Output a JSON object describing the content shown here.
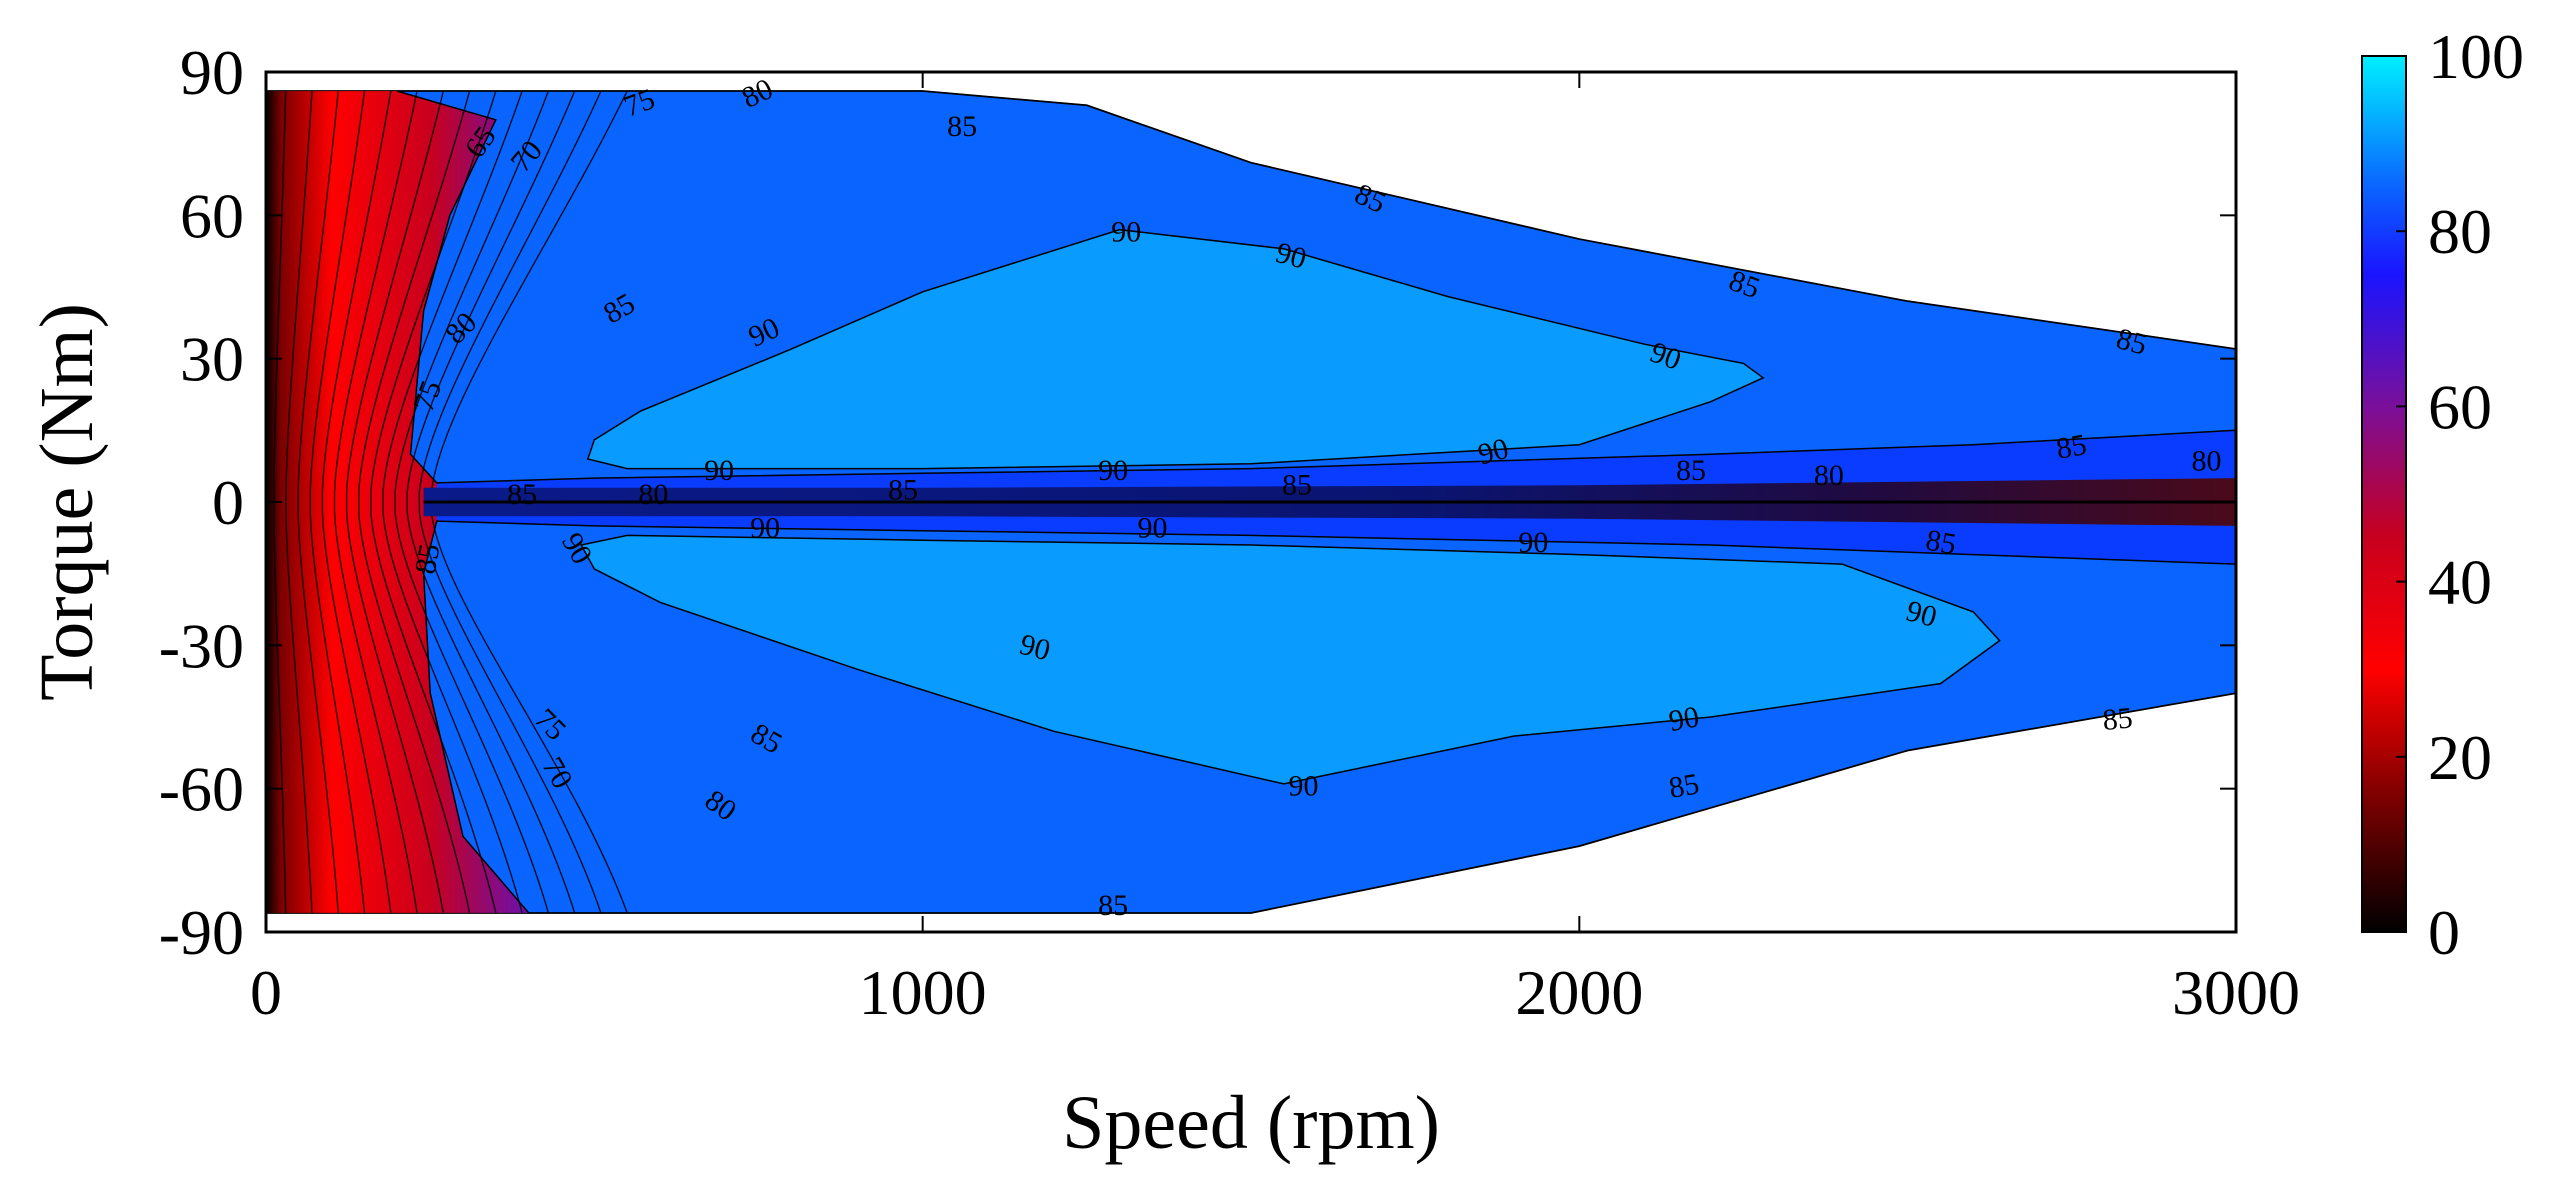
{
  "chart_data": {
    "type": "heatmap",
    "subtype": "filled-contour",
    "title": "",
    "xlabel": "Speed (rpm)",
    "ylabel": "Torque (Nm)",
    "xlim": [
      0,
      3000
    ],
    "ylim": [
      -90,
      90
    ],
    "xticks": [
      "0",
      "1000",
      "2000",
      "3000"
    ],
    "yticks": [
      "90",
      "60",
      "30",
      "0",
      "-30",
      "-60",
      "-90"
    ],
    "colorbar": {
      "range": [
        0,
        100
      ],
      "ticks": [
        "100",
        "80",
        "60",
        "40",
        "20",
        "0"
      ],
      "colormap": [
        {
          "v": 0,
          "c": "#000000"
        },
        {
          "v": 15,
          "c": "#7a0000"
        },
        {
          "v": 30,
          "c": "#ff0000"
        },
        {
          "v": 45,
          "c": "#c8001e"
        },
        {
          "v": 60,
          "c": "#7a0f9a"
        },
        {
          "v": 75,
          "c": "#1a14ff"
        },
        {
          "v": 85,
          "c": "#0a64ff"
        },
        {
          "v": 100,
          "c": "#00f0ff"
        }
      ]
    },
    "region_colors": {
      "level_90": "#0a9bff",
      "level_85": "#0a64ff",
      "level_80": "#0a3cff",
      "level_75": "#1f14f0"
    },
    "operating_envelope": {
      "upper": [
        [
          0,
          86
        ],
        [
          1000,
          86
        ],
        [
          1250,
          83
        ],
        [
          1500,
          71
        ],
        [
          2000,
          55
        ],
        [
          2500,
          42
        ],
        [
          3000,
          32
        ]
      ],
      "lower": [
        [
          0,
          -86
        ],
        [
          1500,
          -86
        ],
        [
          2000,
          -72
        ],
        [
          2500,
          -52
        ],
        [
          3000,
          -40
        ]
      ]
    },
    "contour_regions": {
      "level_85_upper": [
        [
          200,
          86
        ],
        [
          1000,
          86
        ],
        [
          1250,
          83
        ],
        [
          1500,
          71
        ],
        [
          2000,
          55
        ],
        [
          2500,
          42
        ],
        [
          3000,
          32
        ],
        [
          3000,
          15
        ],
        [
          2600,
          12
        ],
        [
          2200,
          10
        ],
        [
          1500,
          7
        ],
        [
          1000,
          6
        ],
        [
          500,
          5
        ],
        [
          260,
          4
        ],
        [
          220,
          10
        ],
        [
          240,
          40
        ],
        [
          280,
          60
        ],
        [
          350,
          80
        ]
      ],
      "level_85_lower": [
        [
          260,
          -4
        ],
        [
          500,
          -5
        ],
        [
          1000,
          -6
        ],
        [
          1500,
          -7
        ],
        [
          2200,
          -9
        ],
        [
          2600,
          -11
        ],
        [
          3000,
          -13
        ],
        [
          3000,
          -40
        ],
        [
          2500,
          -52
        ],
        [
          2000,
          -72
        ],
        [
          1500,
          -86
        ],
        [
          400,
          -86
        ],
        [
          300,
          -70
        ],
        [
          250,
          -40
        ],
        [
          240,
          -15
        ]
      ],
      "level_90_upper": [
        [
          500,
          13
        ],
        [
          570,
          19
        ],
        [
          800,
          32
        ],
        [
          1000,
          44
        ],
        [
          1300,
          57
        ],
        [
          1550,
          53
        ],
        [
          1800,
          43
        ],
        [
          2100,
          33
        ],
        [
          2250,
          29
        ],
        [
          2280,
          26
        ],
        [
          2200,
          21
        ],
        [
          2000,
          12
        ],
        [
          1500,
          8
        ],
        [
          1000,
          7
        ],
        [
          550,
          7
        ],
        [
          490,
          9
        ]
      ],
      "level_90_lower": [
        [
          550,
          -7
        ],
        [
          1000,
          -8
        ],
        [
          1500,
          -9
        ],
        [
          2000,
          -11
        ],
        [
          2400,
          -13
        ],
        [
          2600,
          -23
        ],
        [
          2640,
          -29
        ],
        [
          2550,
          -38
        ],
        [
          2200,
          -45
        ],
        [
          1900,
          -49
        ],
        [
          1550,
          -59
        ],
        [
          1200,
          -48
        ],
        [
          900,
          -35
        ],
        [
          600,
          -21
        ],
        [
          500,
          -14
        ],
        [
          480,
          -9
        ]
      ]
    },
    "contour_labels": [
      {
        "text": "75",
        "x": 570,
        "y": 83,
        "angle": -20
      },
      {
        "text": "80",
        "x": 750,
        "y": 85,
        "angle": -25
      },
      {
        "text": "85",
        "x": 1060,
        "y": 78,
        "angle": 0
      },
      {
        "text": "85",
        "x": 1680,
        "y": 63,
        "angle": 25
      },
      {
        "text": "85",
        "x": 2250,
        "y": 45,
        "angle": 20
      },
      {
        "text": "85",
        "x": 2840,
        "y": 33,
        "angle": 15
      },
      {
        "text": "90",
        "x": 1310,
        "y": 56,
        "angle": 0
      },
      {
        "text": "90",
        "x": 1560,
        "y": 51,
        "angle": 15
      },
      {
        "text": "90",
        "x": 2130,
        "y": 30,
        "angle": 20
      },
      {
        "text": "90",
        "x": 760,
        "y": 35,
        "angle": -25
      },
      {
        "text": "90",
        "x": 1870,
        "y": 10,
        "angle": -15
      },
      {
        "text": "85",
        "x": 540,
        "y": 40,
        "angle": -30
      },
      {
        "text": "80",
        "x": 300,
        "y": 36,
        "angle": -45
      },
      {
        "text": "75",
        "x": 250,
        "y": 22,
        "angle": -70
      },
      {
        "text": "70",
        "x": 400,
        "y": 72,
        "angle": -50
      },
      {
        "text": "65",
        "x": 330,
        "y": 75,
        "angle": -55
      },
      {
        "text": "85",
        "x": 390,
        "y": 1,
        "angle": 0
      },
      {
        "text": "80",
        "x": 590,
        "y": 1,
        "angle": 0
      },
      {
        "text": "90",
        "x": 690,
        "y": 6,
        "angle": 0
      },
      {
        "text": "85",
        "x": 970,
        "y": 2,
        "angle": 0
      },
      {
        "text": "90",
        "x": 1290,
        "y": 6,
        "angle": 0
      },
      {
        "text": "85",
        "x": 1570,
        "y": 3,
        "angle": 0
      },
      {
        "text": "85",
        "x": 2170,
        "y": 6,
        "angle": 0
      },
      {
        "text": "80",
        "x": 2380,
        "y": 5,
        "angle": 0
      },
      {
        "text": "85",
        "x": 2750,
        "y": 11,
        "angle": -10
      },
      {
        "text": "80",
        "x": 2955,
        "y": 8,
        "angle": 0
      },
      {
        "text": "90",
        "x": 470,
        "y": -10,
        "angle": 60
      },
      {
        "text": "90",
        "x": 760,
        "y": -6,
        "angle": 0
      },
      {
        "text": "90",
        "x": 1350,
        "y": -6,
        "angle": 0
      },
      {
        "text": "90",
        "x": 1930,
        "y": -9,
        "angle": 0
      },
      {
        "text": "85",
        "x": 2550,
        "y": -9,
        "angle": 10
      },
      {
        "text": "85",
        "x": 250,
        "y": -12,
        "angle": -80
      },
      {
        "text": "90",
        "x": 1170,
        "y": -31,
        "angle": 15
      },
      {
        "text": "90",
        "x": 2520,
        "y": -24,
        "angle": 15
      },
      {
        "text": "85",
        "x": 760,
        "y": -50,
        "angle": 30
      },
      {
        "text": "90",
        "x": 1580,
        "y": -60,
        "angle": 0
      },
      {
        "text": "90",
        "x": 2160,
        "y": -46,
        "angle": -10
      },
      {
        "text": "85",
        "x": 2160,
        "y": -60,
        "angle": -10
      },
      {
        "text": "85",
        "x": 2820,
        "y": -46,
        "angle": -5
      },
      {
        "text": "80",
        "x": 690,
        "y": -64,
        "angle": 35
      },
      {
        "text": "85",
        "x": 1290,
        "y": -85,
        "angle": 0
      },
      {
        "text": "75",
        "x": 430,
        "y": -47,
        "angle": 45
      },
      {
        "text": "70",
        "x": 440,
        "y": -57,
        "angle": 60
      }
    ]
  }
}
